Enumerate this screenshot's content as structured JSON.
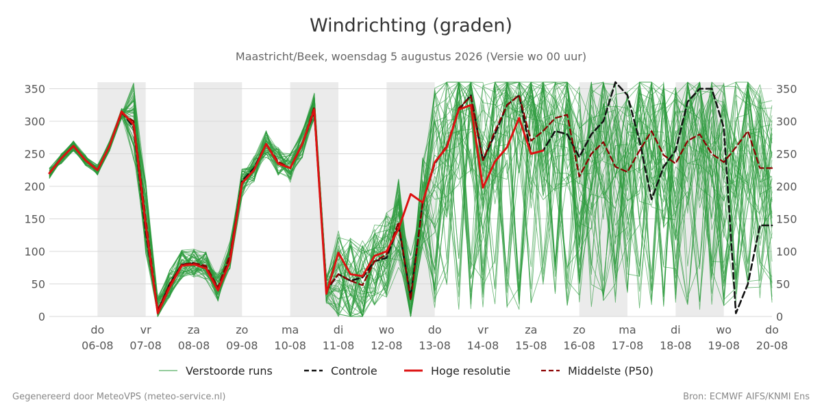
{
  "chart_data": {
    "type": "line",
    "title": "Windrichting (graden)",
    "subtitle": "Maastricht/Beek, woensdag  5 augustus 2026 (Versie wo 00 uur)",
    "xlabel": "",
    "ylabel": "",
    "ylim": [
      0,
      360
    ],
    "xlim": [
      "2026-08-05 00:00",
      "2026-08-20 00:00"
    ],
    "yticks": [
      0,
      50,
      100,
      150,
      200,
      250,
      300,
      350
    ],
    "day_ticks": [
      {
        "date": "2026-08-06",
        "day": "do",
        "label": "06-08"
      },
      {
        "date": "2026-08-07",
        "day": "vr",
        "label": "07-08"
      },
      {
        "date": "2026-08-08",
        "day": "za",
        "label": "08-08"
      },
      {
        "date": "2026-08-09",
        "day": "zo",
        "label": "09-08"
      },
      {
        "date": "2026-08-10",
        "day": "ma",
        "label": "10-08"
      },
      {
        "date": "2026-08-11",
        "day": "di",
        "label": "11-08"
      },
      {
        "date": "2026-08-12",
        "day": "wo",
        "label": "12-08"
      },
      {
        "date": "2026-08-13",
        "day": "do",
        "label": "13-08"
      },
      {
        "date": "2026-08-14",
        "day": "vr",
        "label": "14-08"
      },
      {
        "date": "2026-08-15",
        "day": "za",
        "label": "15-08"
      },
      {
        "date": "2026-08-16",
        "day": "zo",
        "label": "16-08"
      },
      {
        "date": "2026-08-17",
        "day": "ma",
        "label": "17-08"
      },
      {
        "date": "2026-08-18",
        "day": "di",
        "label": "18-08"
      },
      {
        "date": "2026-08-19",
        "day": "wo",
        "label": "19-08"
      },
      {
        "date": "2026-08-20",
        "day": "do",
        "label": "20-08"
      }
    ],
    "shaded_days": [
      "2026-08-06",
      "2026-08-08",
      "2026-08-10",
      "2026-08-12",
      "2026-08-16",
      "2026-08-18"
    ],
    "grid": true,
    "legend_position": "bottom",
    "legend": [
      {
        "key": "perturbed",
        "label": "Verstoorde runs",
        "color": "#2a9a3a",
        "style": "thin"
      },
      {
        "key": "control",
        "label": "Controle",
        "color": "#111111",
        "style": "dashed"
      },
      {
        "key": "hires",
        "label": "Hoge resolutie",
        "color": "#dd1111",
        "style": "solid"
      },
      {
        "key": "median",
        "label": "Middelste (P50)",
        "color": "#8b0000",
        "style": "dashed"
      }
    ],
    "series": [
      {
        "name": "Hoge resolutie",
        "x": [
          "2026-08-05 00:00",
          "2026-08-05 06:00",
          "2026-08-05 12:00",
          "2026-08-05 18:00",
          "2026-08-06 00:00",
          "2026-08-06 06:00",
          "2026-08-06 12:00",
          "2026-08-06 18:00",
          "2026-08-07 00:00",
          "2026-08-07 06:00",
          "2026-08-07 12:00",
          "2026-08-07 18:00",
          "2026-08-08 00:00",
          "2026-08-08 06:00",
          "2026-08-08 12:00",
          "2026-08-08 18:00",
          "2026-08-09 00:00",
          "2026-08-09 06:00",
          "2026-08-09 12:00",
          "2026-08-09 18:00",
          "2026-08-10 00:00",
          "2026-08-10 06:00",
          "2026-08-10 12:00",
          "2026-08-10 18:00",
          "2026-08-11 00:00",
          "2026-08-11 06:00",
          "2026-08-11 12:00",
          "2026-08-11 18:00",
          "2026-08-12 00:00",
          "2026-08-12 06:00",
          "2026-08-12 12:00",
          "2026-08-12 18:00",
          "2026-08-13 00:00",
          "2026-08-13 06:00",
          "2026-08-13 12:00",
          "2026-08-13 18:00",
          "2026-08-14 00:00",
          "2026-08-14 06:00",
          "2026-08-14 12:00",
          "2026-08-14 18:00",
          "2026-08-15 00:00",
          "2026-08-15 06:00"
        ],
        "values": [
          220,
          243,
          262,
          240,
          225,
          262,
          315,
          295,
          140,
          5,
          45,
          78,
          80,
          74,
          40,
          85,
          205,
          225,
          265,
          235,
          228,
          265,
          318,
          35,
          98,
          65,
          62,
          93,
          100,
          135,
          188,
          175,
          237,
          260,
          318,
          325,
          198,
          238,
          260,
          305,
          250,
          255
        ]
      },
      {
        "name": "Controle",
        "x": [
          "2026-08-05 00:00",
          "2026-08-05 06:00",
          "2026-08-05 12:00",
          "2026-08-05 18:00",
          "2026-08-06 00:00",
          "2026-08-06 06:00",
          "2026-08-06 12:00",
          "2026-08-06 18:00",
          "2026-08-07 00:00",
          "2026-08-07 06:00",
          "2026-08-07 12:00",
          "2026-08-07 18:00",
          "2026-08-08 00:00",
          "2026-08-08 06:00",
          "2026-08-08 12:00",
          "2026-08-08 18:00",
          "2026-08-09 00:00",
          "2026-08-09 06:00",
          "2026-08-09 12:00",
          "2026-08-09 18:00",
          "2026-08-10 00:00",
          "2026-08-10 06:00",
          "2026-08-10 12:00",
          "2026-08-10 18:00",
          "2026-08-11 00:00",
          "2026-08-11 06:00",
          "2026-08-11 12:00",
          "2026-08-11 18:00",
          "2026-08-12 00:00",
          "2026-08-12 06:00",
          "2026-08-12 12:00",
          "2026-08-12 18:00",
          "2026-08-13 00:00",
          "2026-08-13 06:00",
          "2026-08-13 12:00",
          "2026-08-13 18:00",
          "2026-08-14 00:00",
          "2026-08-14 06:00",
          "2026-08-14 12:00",
          "2026-08-14 18:00",
          "2026-08-15 00:00",
          "2026-08-15 06:00",
          "2026-08-15 12:00",
          "2026-08-15 18:00",
          "2026-08-16 00:00",
          "2026-08-16 06:00",
          "2026-08-16 12:00",
          "2026-08-16 18:00",
          "2026-08-17 00:00",
          "2026-08-17 06:00",
          "2026-08-17 12:00",
          "2026-08-17 18:00",
          "2026-08-18 00:00",
          "2026-08-18 06:00",
          "2026-08-18 12:00",
          "2026-08-18 18:00",
          "2026-08-19 00:00",
          "2026-08-19 06:00",
          "2026-08-19 12:00",
          "2026-08-19 18:00",
          "2026-08-20 00:00"
        ],
        "values": [
          220,
          243,
          262,
          240,
          225,
          262,
          315,
          290,
          130,
          8,
          50,
          80,
          82,
          75,
          42,
          90,
          208,
          228,
          265,
          235,
          228,
          265,
          315,
          40,
          65,
          55,
          60,
          85,
          90,
          140,
          30,
          175,
          235,
          262,
          318,
          340,
          240,
          280,
          325,
          340,
          250,
          255,
          285,
          280,
          245,
          280,
          300,
          360,
          340,
          270,
          180,
          230,
          255,
          330,
          350,
          350,
          290,
          5,
          50,
          140,
          140
        ]
      },
      {
        "name": "Middelste (P50)",
        "x": [
          "2026-08-05 00:00",
          "2026-08-05 06:00",
          "2026-08-05 12:00",
          "2026-08-05 18:00",
          "2026-08-06 00:00",
          "2026-08-06 06:00",
          "2026-08-06 12:00",
          "2026-08-06 18:00",
          "2026-08-07 00:00",
          "2026-08-07 06:00",
          "2026-08-07 12:00",
          "2026-08-07 18:00",
          "2026-08-08 00:00",
          "2026-08-08 06:00",
          "2026-08-08 12:00",
          "2026-08-08 18:00",
          "2026-08-09 00:00",
          "2026-08-09 06:00",
          "2026-08-09 12:00",
          "2026-08-09 18:00",
          "2026-08-10 00:00",
          "2026-08-10 06:00",
          "2026-08-10 12:00",
          "2026-08-10 18:00",
          "2026-08-11 00:00",
          "2026-08-11 06:00",
          "2026-08-11 12:00",
          "2026-08-11 18:00",
          "2026-08-12 00:00",
          "2026-08-12 06:00",
          "2026-08-12 12:00",
          "2026-08-12 18:00",
          "2026-08-13 00:00",
          "2026-08-13 06:00",
          "2026-08-13 12:00",
          "2026-08-13 18:00",
          "2026-08-14 00:00",
          "2026-08-14 06:00",
          "2026-08-14 12:00",
          "2026-08-14 18:00",
          "2026-08-15 00:00",
          "2026-08-15 06:00",
          "2026-08-15 12:00",
          "2026-08-15 18:00",
          "2026-08-16 00:00",
          "2026-08-16 06:00",
          "2026-08-16 12:00",
          "2026-08-16 18:00",
          "2026-08-17 00:00",
          "2026-08-17 06:00",
          "2026-08-17 12:00",
          "2026-08-17 18:00",
          "2026-08-18 00:00",
          "2026-08-18 06:00",
          "2026-08-18 12:00",
          "2026-08-18 18:00",
          "2026-08-19 00:00",
          "2026-08-19 06:00",
          "2026-08-19 12:00",
          "2026-08-19 18:00",
          "2026-08-20 00:00"
        ],
        "values": [
          220,
          243,
          262,
          240,
          225,
          262,
          312,
          300,
          150,
          10,
          50,
          80,
          82,
          78,
          45,
          95,
          205,
          225,
          265,
          238,
          228,
          265,
          322,
          42,
          65,
          55,
          48,
          85,
          95,
          145,
          25,
          175,
          237,
          262,
          320,
          338,
          240,
          285,
          325,
          340,
          270,
          285,
          305,
          310,
          215,
          250,
          268,
          230,
          222,
          255,
          285,
          248,
          235,
          270,
          280,
          250,
          237,
          260,
          285,
          228,
          228
        ]
      }
    ],
    "perturbed_runs_count": 50
  },
  "legend": {
    "perturbed": "Verstoorde runs",
    "control": "Controle",
    "hires": "Hoge resolutie",
    "median": "Middelste (P50)"
  },
  "footer": {
    "left": "Gegenereerd door MeteoVPS (meteo-service.nl)",
    "right": "Bron: ECMWF AIFS/KNMI Ens"
  }
}
